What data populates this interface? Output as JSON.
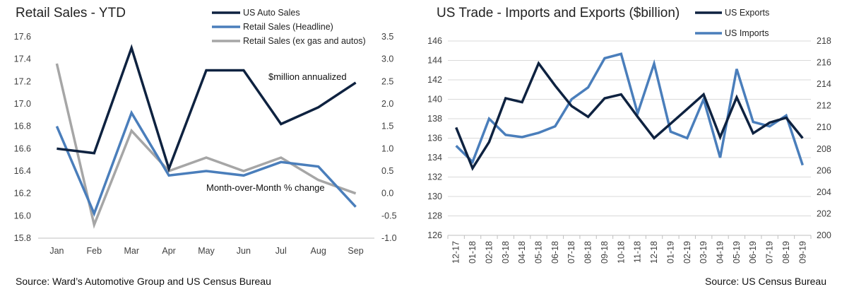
{
  "chart_data": [
    {
      "type": "line",
      "title": "Retail Sales - YTD",
      "source": "Source:  Ward’s Automotive Group and US Census Bureau",
      "categories": [
        "Jan",
        "Feb",
        "Mar",
        "Apr",
        "May",
        "Jun",
        "Jul",
        "Aug",
        "Sep"
      ],
      "y_left": {
        "ylim": [
          15.8,
          17.6
        ],
        "ticks": [
          "15.8",
          "16.0",
          "16.2",
          "16.4",
          "16.6",
          "16.8",
          "17.0",
          "17.2",
          "17.4",
          "17.6"
        ]
      },
      "y_right": {
        "ylim": [
          -1.0,
          3.5
        ],
        "ticks": [
          "-1.0",
          "-0.5",
          "0.0",
          "0.5",
          "1.0",
          "1.5",
          "2.0",
          "2.5",
          "3.0",
          "3.5"
        ]
      },
      "series": [
        {
          "name": "US Auto Sales",
          "axis": "left",
          "color": "#0e2240",
          "values": [
            16.6,
            16.56,
            17.5,
            16.42,
            17.3,
            17.3,
            16.82,
            16.97,
            17.19
          ]
        },
        {
          "name": "Retail Sales (Headline)",
          "axis": "right",
          "color": "#4a7ebb",
          "values": [
            1.5,
            -0.45,
            1.8,
            0.4,
            0.5,
            0.4,
            0.7,
            0.6,
            -0.3
          ]
        },
        {
          "name": "Retail Sales (ex gas and autos)",
          "axis": "right",
          "color": "#a6a6a6",
          "values": [
            2.9,
            -0.7,
            1.4,
            0.5,
            0.8,
            0.5,
            0.8,
            0.3,
            0.0
          ]
        }
      ],
      "annotations": [
        "$million annualized",
        "Month-over-Month % change"
      ],
      "grid": false,
      "legend": "top"
    },
    {
      "type": "line",
      "title": "US Trade - Imports and Exports ($billion)",
      "source": "Source:  US Census Bureau",
      "categories": [
        "12-17",
        "01-18",
        "02-18",
        "03-18",
        "04-18",
        "05-18",
        "06-18",
        "07-18",
        "08-18",
        "09-18",
        "10-18",
        "11-18",
        "12-18",
        "01-19",
        "02-19",
        "03-19",
        "04-19",
        "05-19",
        "06-19",
        "07-19",
        "08-19",
        "09-19"
      ],
      "y_left": {
        "ylim": [
          126,
          146
        ],
        "ticks": [
          "126",
          "128",
          "130",
          "132",
          "134",
          "136",
          "138",
          "140",
          "142",
          "144",
          "146"
        ]
      },
      "y_right": {
        "ylim": [
          200,
          218
        ],
        "ticks": [
          "200",
          "202",
          "204",
          "206",
          "208",
          "210",
          "212",
          "214",
          "216",
          "218"
        ]
      },
      "series": [
        {
          "name": "US Exports",
          "axis": "left",
          "color": "#0e2240",
          "values": [
            137.1,
            132.9,
            135.6,
            140.1,
            139.7,
            143.7,
            141.4,
            139.3,
            138.2,
            140.1,
            140.5,
            138.2,
            136.0,
            137.5,
            139.0,
            140.5,
            136.1,
            140.2,
            136.5,
            137.6,
            138.1,
            136.0
          ]
        },
        {
          "name": "US Imports",
          "axis": "right",
          "color": "#4a7ebb",
          "values": [
            208.3,
            206.8,
            210.8,
            209.3,
            209.1,
            209.5,
            210.1,
            212.6,
            213.7,
            216.4,
            216.8,
            211.3,
            215.9,
            209.6,
            209.0,
            212.6,
            207.2,
            215.4,
            210.5,
            210.1,
            211.1,
            206.5
          ]
        }
      ],
      "grid": true,
      "legend": "top-right"
    }
  ]
}
